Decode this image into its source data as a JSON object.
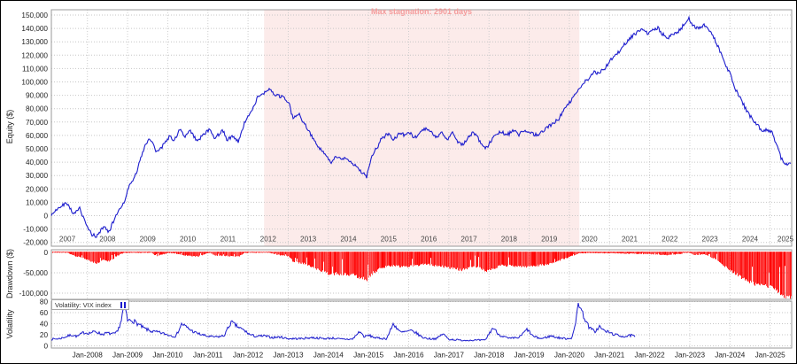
{
  "colors": {
    "equity_line": "#1c1ccd",
    "vix_line": "#1c1ccd",
    "drawdown_bar": "#ff0000",
    "stagnation_fill": "#fcebea",
    "stagnation_text": "#f49c9c",
    "grid_h": "#c6c6c6",
    "grid_v": "#cdcdcd",
    "panel_border": "#9a9a9a",
    "tick_text": "#222222",
    "year_text": "#444444"
  },
  "panels": {
    "equity": {
      "ylabel": "Equity ($)",
      "annotation": "Max stagnation: 2901 days",
      "ytick_labels": [
        "150,000",
        "140,000",
        "130,000",
        "120,000",
        "110,000",
        "100,000",
        "90,000",
        "80,000",
        "70,000",
        "60,000",
        "50,000",
        "40,000",
        "30,000",
        "20,000",
        "10,000",
        "0",
        "-10,000",
        "-20,000"
      ],
      "ytick_values": [
        150000,
        140000,
        130000,
        120000,
        110000,
        100000,
        90000,
        80000,
        70000,
        60000,
        50000,
        40000,
        30000,
        20000,
        10000,
        0,
        -10000,
        -20000
      ],
      "xtick_labels": [
        "2007",
        "2008",
        "2009",
        "2010",
        "2011",
        "2012",
        "2013",
        "2014",
        "2015",
        "2016",
        "2017",
        "2018",
        "2019",
        "2020",
        "2021",
        "2022",
        "2023",
        "2024",
        "2025"
      ]
    },
    "drawdown": {
      "ylabel": "Drawdown ($)",
      "ytick_labels": [
        "0",
        "-50,000",
        "-100,000"
      ],
      "ytick_values": [
        0,
        -50000,
        -100000
      ]
    },
    "volatility": {
      "ylabel": "Volatility",
      "legend": "Volatility: VIX index",
      "ytick_labels": [
        "80",
        "60",
        "40",
        "20",
        "0"
      ],
      "ytick_values": [
        80,
        60,
        40,
        20,
        0
      ],
      "xtick_labels": [
        "Jan-2008",
        "Jan-2009",
        "Jan-2010",
        "Jan-2011",
        "Jan-2012",
        "Jan-2013",
        "Jan-2014",
        "Jan-2015",
        "Jan-2016",
        "Jan-2017",
        "Jan-2018",
        "Jan-2019",
        "Jan-2020",
        "Jan-2021",
        "Jan-2022",
        "Jan-2023",
        "Jan-2024",
        "Jan-2025"
      ]
    }
  },
  "chart_data": [
    {
      "type": "line",
      "title": "Equity ($)",
      "ylabel": "Equity ($)",
      "xlim": [
        2007.1,
        2025.55
      ],
      "ylim": [
        -20000,
        150000
      ],
      "grid": true,
      "annotation": {
        "label": "Max stagnation: 2901 days",
        "x_start": 2012.4,
        "x_end": 2020.25
      },
      "series": [
        {
          "name": "Equity",
          "x": [
            2007.1,
            2007.35,
            2007.5,
            2007.65,
            2007.8,
            2007.94,
            2008.1,
            2008.23,
            2008.4,
            2008.54,
            2008.7,
            2008.9,
            2009.04,
            2009.2,
            2009.33,
            2009.48,
            2009.6,
            2009.7,
            2009.86,
            2010.03,
            2010.17,
            2010.3,
            2010.43,
            2010.56,
            2010.74,
            2010.87,
            2011.03,
            2011.18,
            2011.36,
            2011.49,
            2011.62,
            2011.76,
            2011.9,
            2012.07,
            2012.24,
            2012.4,
            2012.53,
            2012.68,
            2012.86,
            2013.01,
            2013.12,
            2013.26,
            2013.39,
            2013.52,
            2013.67,
            2013.83,
            2013.96,
            2014.07,
            2014.18,
            2014.33,
            2014.44,
            2014.58,
            2014.71,
            2014.84,
            2014.95,
            2015.06,
            2015.19,
            2015.32,
            2015.48,
            2015.61,
            2015.77,
            2015.9,
            2016.03,
            2016.17,
            2016.32,
            2016.43,
            2016.58,
            2016.69,
            2016.83,
            2016.98,
            2017.09,
            2017.2,
            2017.31,
            2017.47,
            2017.6,
            2017.71,
            2017.82,
            2017.93,
            2018.04,
            2018.15,
            2018.3,
            2018.46,
            2018.59,
            2018.74,
            2018.85,
            2018.96,
            2019.07,
            2019.21,
            2019.34,
            2019.47,
            2019.6,
            2019.73,
            2019.87,
            2020.0,
            2020.13,
            2020.24,
            2020.35,
            2020.48,
            2020.62,
            2020.75,
            2020.88,
            2021.01,
            2021.15,
            2021.28,
            2021.43,
            2021.56,
            2021.7,
            2021.81,
            2021.94,
            2022.07,
            2022.2,
            2022.33,
            2022.47,
            2022.6,
            2022.73,
            2022.86,
            2022.97,
            2023.08,
            2023.21,
            2023.35,
            2023.48,
            2023.61,
            2023.74,
            2023.88,
            2024.01,
            2024.14,
            2024.27,
            2024.4,
            2024.54,
            2024.67,
            2024.8,
            2024.93,
            2025.06,
            2025.17,
            2025.28,
            2025.39,
            2025.52
          ],
          "values": [
            0,
            8000,
            10000,
            2000,
            6000,
            -5000,
            -14000,
            -16000,
            -8000,
            -12000,
            0,
            10000,
            22000,
            30000,
            42000,
            55000,
            57000,
            48000,
            52000,
            60000,
            57000,
            65000,
            58000,
            63000,
            55000,
            60000,
            65000,
            58000,
            65000,
            56000,
            60000,
            55000,
            68000,
            78000,
            88000,
            92000,
            95000,
            90000,
            88000,
            85000,
            72000,
            76000,
            68000,
            63000,
            55000,
            48000,
            44000,
            38000,
            43000,
            41000,
            44000,
            40000,
            36000,
            32000,
            28000,
            42000,
            50000,
            58000,
            62000,
            58000,
            62000,
            60000,
            63000,
            58000,
            63000,
            66000,
            62000,
            58000,
            62000,
            58000,
            62000,
            56000,
            52000,
            58000,
            62000,
            58000,
            52000,
            50000,
            55000,
            60000,
            63000,
            60000,
            64000,
            60000,
            63000,
            60000,
            62000,
            60000,
            63000,
            66000,
            70000,
            72000,
            80000,
            85000,
            90000,
            95000,
            100000,
            103000,
            107000,
            106000,
            110000,
            115000,
            120000,
            125000,
            131000,
            135000,
            138000,
            140000,
            136000,
            138000,
            140000,
            135000,
            133000,
            136000,
            138000,
            143000,
            148000,
            142000,
            140000,
            143000,
            139000,
            133000,
            124000,
            113000,
            106000,
            95000,
            88000,
            80000,
            73000,
            68000,
            63000,
            65000,
            62000,
            53000,
            42000,
            38000,
            39000
          ]
        }
      ]
    },
    {
      "type": "bar",
      "title": "Drawdown ($)",
      "ylabel": "Drawdown ($)",
      "xlim": [
        2007.1,
        2025.55
      ],
      "ylim": [
        -115000,
        0
      ],
      "series": [
        {
          "name": "Drawdown",
          "x": [
            2007.1,
            2007.5,
            2007.65,
            2007.94,
            2008.1,
            2008.23,
            2008.4,
            2008.54,
            2008.7,
            2008.9,
            2009.6,
            2009.7,
            2009.86,
            2010.03,
            2010.43,
            2010.74,
            2011.03,
            2011.18,
            2011.49,
            2011.76,
            2011.9,
            2012.53,
            2012.68,
            2013.01,
            2013.12,
            2013.39,
            2013.67,
            2013.96,
            2014.07,
            2014.18,
            2014.58,
            2014.84,
            2014.95,
            2015.06,
            2015.32,
            2015.48,
            2015.9,
            2016.43,
            2016.98,
            2017.31,
            2017.6,
            2017.93,
            2018.3,
            2018.96,
            2019.47,
            2019.87,
            2020.24,
            2020.5,
            2021.0,
            2021.94,
            2022.47,
            2022.97,
            2023.08,
            2023.35,
            2023.61,
            2023.88,
            2024.14,
            2024.4,
            2024.67,
            2024.93,
            2025.06,
            2025.17,
            2025.28,
            2025.39,
            2025.52
          ],
          "values": [
            -500,
            -500,
            -8000,
            -15000,
            -24000,
            -26000,
            -18000,
            -22000,
            -10000,
            -1000,
            -1000,
            -9000,
            -5000,
            -1000,
            -7000,
            -10000,
            -1000,
            -7000,
            -9000,
            -10000,
            -1000,
            -500,
            -5000,
            -10000,
            -23000,
            -27000,
            -40000,
            -51000,
            -57000,
            -52000,
            -55000,
            -63000,
            -67000,
            -53000,
            -37000,
            -33000,
            -35000,
            -29000,
            -37000,
            -43000,
            -33000,
            -45000,
            -32000,
            -35000,
            -29000,
            -15000,
            -2000,
            -1500,
            -2000,
            -4000,
            -7000,
            -500,
            -6000,
            -5000,
            -15000,
            -35000,
            -53000,
            -68000,
            -80000,
            -83000,
            -86000,
            -95000,
            -106000,
            -110000,
            -109000
          ]
        }
      ]
    },
    {
      "type": "line",
      "title": "Volatility",
      "ylabel": "Volatility",
      "legend_position": "top-left",
      "xlim": [
        2007.1,
        2025.55
      ],
      "ylim": [
        0,
        85
      ],
      "series": [
        {
          "name": "VIX index",
          "x": [
            2007.1,
            2007.3,
            2007.45,
            2007.6,
            2007.75,
            2007.9,
            2008.05,
            2008.2,
            2008.35,
            2008.5,
            2008.65,
            2008.75,
            2008.85,
            2008.92,
            2009.0,
            2009.1,
            2009.25,
            2009.4,
            2009.6,
            2009.8,
            2010.0,
            2010.2,
            2010.35,
            2010.5,
            2010.65,
            2010.8,
            2011.0,
            2011.2,
            2011.4,
            2011.58,
            2011.75,
            2011.9,
            2012.05,
            2012.2,
            2012.4,
            2012.6,
            2012.8,
            2013.0,
            2013.3,
            2013.6,
            2013.9,
            2014.1,
            2014.3,
            2014.6,
            2014.78,
            2014.9,
            2015.0,
            2015.2,
            2015.45,
            2015.62,
            2015.8,
            2016.05,
            2016.15,
            2016.35,
            2016.5,
            2016.7,
            2016.85,
            2017.0,
            2017.3,
            2017.6,
            2017.9,
            2018.1,
            2018.25,
            2018.5,
            2018.75,
            2018.95,
            2019.1,
            2019.3,
            2019.55,
            2019.7,
            2019.9,
            2020.05,
            2020.15,
            2020.22,
            2020.35,
            2020.5,
            2020.65,
            2020.75,
            2020.85,
            2021.0,
            2021.1,
            2021.25,
            2021.4,
            2021.55,
            2021.65
          ],
          "values": [
            12,
            13,
            16,
            20,
            17,
            24,
            23,
            26,
            21,
            23,
            21,
            25,
            48,
            79,
            45,
            47,
            40,
            32,
            26,
            24,
            20,
            17,
            40,
            32,
            25,
            21,
            17,
            16,
            18,
            43,
            34,
            28,
            20,
            17,
            18,
            15,
            16,
            13,
            13,
            15,
            13,
            14,
            12,
            12,
            26,
            16,
            19,
            14,
            13,
            40,
            24,
            27,
            25,
            15,
            13,
            13,
            22,
            12,
            10,
            10,
            10,
            33,
            20,
            13,
            15,
            30,
            17,
            13,
            18,
            15,
            13,
            14,
            35,
            80,
            55,
            32,
            26,
            35,
            28,
            24,
            21,
            18,
            17,
            19,
            16
          ]
        }
      ]
    }
  ]
}
